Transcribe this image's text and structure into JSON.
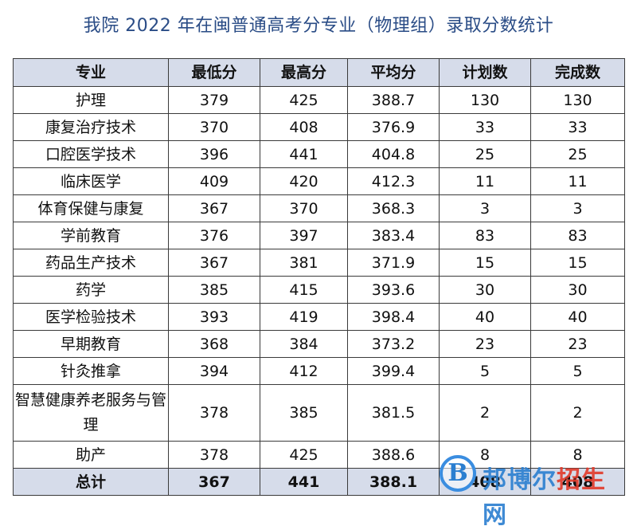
{
  "title": "我院 2022 年在闽普通高考分专业（物理组）录取分数统计",
  "table": {
    "headers": [
      "专业",
      "最低分",
      "最高分",
      "平均分",
      "计划数",
      "完成数"
    ],
    "rows": [
      [
        "护理",
        "379",
        "425",
        "388.7",
        "130",
        "130"
      ],
      [
        "康复治疗技术",
        "370",
        "408",
        "376.9",
        "33",
        "33"
      ],
      [
        "口腔医学技术",
        "396",
        "441",
        "404.8",
        "25",
        "25"
      ],
      [
        "临床医学",
        "409",
        "420",
        "412.3",
        "11",
        "11"
      ],
      [
        "体育保健与康复",
        "367",
        "370",
        "368.3",
        "3",
        "3"
      ],
      [
        "学前教育",
        "376",
        "397",
        "383.4",
        "83",
        "83"
      ],
      [
        "药品生产技术",
        "367",
        "381",
        "371.9",
        "15",
        "15"
      ],
      [
        "药学",
        "385",
        "415",
        "393.6",
        "30",
        "30"
      ],
      [
        "医学检验技术",
        "393",
        "419",
        "398.4",
        "40",
        "40"
      ],
      [
        "早期教育",
        "368",
        "384",
        "373.2",
        "23",
        "23"
      ],
      [
        "针灸推拿",
        "394",
        "412",
        "399.4",
        "5",
        "5"
      ],
      [
        "智慧健康养老服务与管理",
        "378",
        "385",
        "381.5",
        "2",
        "2"
      ],
      [
        "助产",
        "378",
        "425",
        "388.6",
        "8",
        "8"
      ]
    ],
    "total": [
      "总计",
      "367",
      "441",
      "388.1",
      "408",
      "408"
    ]
  },
  "watermark": {
    "letter": "B",
    "text_blue": "邦博尔",
    "text_red": "招生",
    "text_end": "网"
  }
}
